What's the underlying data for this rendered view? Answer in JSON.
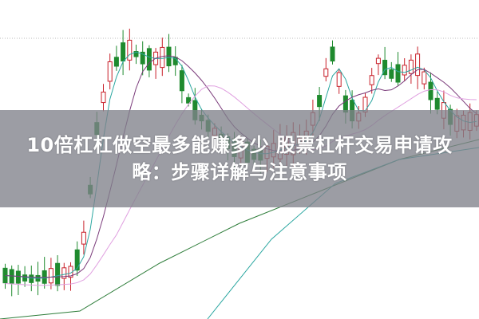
{
  "article": {
    "title_line1": "10倍杠杠做空最多能赚多少 股票杠杆交易申请攻",
    "title_line2": "略：步骤详解与注意事项"
  },
  "colors": {
    "up_candle": "#c8202a",
    "down_candle": "#1f8a2e",
    "ma_short": "#2aa6a0",
    "ma_mid": "#7a3a7a",
    "ma_long": "#2e7d3a",
    "ma_extra": "#e0a0e0",
    "band": "#80828a"
  }
}
